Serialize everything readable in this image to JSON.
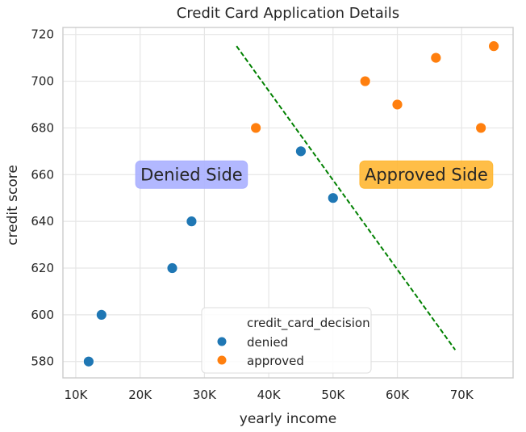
{
  "chart_data": {
    "type": "scatter",
    "title": "Credit Card Application Details",
    "xlabel": "yearly income",
    "ylabel": "credit score",
    "xlim": [
      8000,
      78000
    ],
    "ylim": [
      573,
      723
    ],
    "xticks": [
      10000,
      20000,
      30000,
      40000,
      50000,
      60000,
      70000
    ],
    "xtick_labels": [
      "10K",
      "20K",
      "30K",
      "40K",
      "50K",
      "60K",
      "70K"
    ],
    "yticks": [
      580,
      600,
      620,
      640,
      660,
      680,
      700,
      720
    ],
    "ytick_labels": [
      "580",
      "600",
      "620",
      "640",
      "660",
      "680",
      "700",
      "720"
    ],
    "grid": true,
    "legend": {
      "title": "credit_card_decision",
      "placement": "bottom-center",
      "entries": [
        {
          "label": "denied",
          "color": "#1f77b4"
        },
        {
          "label": "approved",
          "color": "#ff7f0e"
        }
      ]
    },
    "series": [
      {
        "name": "denied",
        "color": "#1f77b4",
        "points": [
          {
            "x": 12000,
            "y": 580
          },
          {
            "x": 14000,
            "y": 600
          },
          {
            "x": 25000,
            "y": 620
          },
          {
            "x": 28000,
            "y": 640
          },
          {
            "x": 45000,
            "y": 670
          },
          {
            "x": 50000,
            "y": 650
          }
        ]
      },
      {
        "name": "approved",
        "color": "#ff7f0e",
        "points": [
          {
            "x": 38000,
            "y": 680
          },
          {
            "x": 55000,
            "y": 700
          },
          {
            "x": 60000,
            "y": 690
          },
          {
            "x": 66000,
            "y": 710
          },
          {
            "x": 73000,
            "y": 680
          },
          {
            "x": 75000,
            "y": 715
          }
        ]
      }
    ],
    "decision_line": {
      "color": "#008000",
      "style": "dashed",
      "points": [
        {
          "x": 35000,
          "y": 715
        },
        {
          "x": 69000,
          "y": 585
        }
      ]
    },
    "annotations": [
      {
        "text": "Denied Side",
        "x": 28000,
        "y": 660,
        "box_color": "#aab0ff"
      },
      {
        "text": "Approved Side",
        "x": 64500,
        "y": 660,
        "box_color": "#ffb733"
      }
    ]
  }
}
